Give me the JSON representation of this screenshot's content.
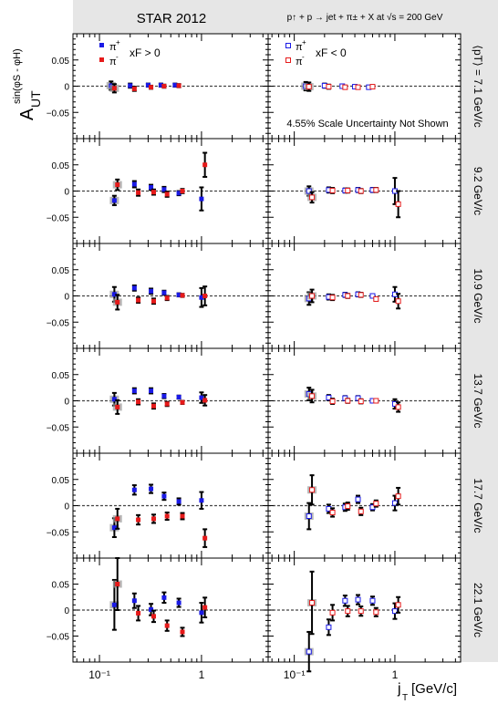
{
  "header": {
    "experiment": "STAR 2012",
    "reaction": "p↑ + p → jet + π± + X at √s = 200 GeV"
  },
  "ylabel_main": "A",
  "ylabel_sub": "UT",
  "ylabel_sup": "sin(φS - φH)",
  "xlabel_main": "j",
  "xlabel_sub": "T",
  "xlabel_unit": "[GeV/c]",
  "legend_left": {
    "pip": "π",
    "pim": "π",
    "sup_p": "+",
    "sup_m": "-",
    "cut": "xF > 0"
  },
  "legend_right": {
    "pip": "π",
    "pim": "π",
    "sup_p": "+",
    "sup_m": "-",
    "cut": "xF < 0"
  },
  "scale_note": "4.55% Scale Uncertainty Not Shown",
  "colors": {
    "pi_plus": "#1a1ae6",
    "pi_minus": "#e61a1a",
    "zero_line": "#444444",
    "header_bg": "#e6e6e6",
    "sys_box": "#9a9a9a"
  },
  "chart_data": {
    "type": "scatter",
    "x_scale": "log",
    "xlim": [
      0.055,
      4.5
    ],
    "ylim": [
      -0.1,
      0.1
    ],
    "x_ticks": [
      {
        "v": 0.1,
        "label": "10⁻¹"
      },
      {
        "v": 1,
        "label": "1"
      }
    ],
    "y_ticks": [
      -0.05,
      0,
      0.05
    ],
    "y_tick_labels": [
      "−0.05",
      "0",
      "0.05"
    ],
    "rows": [
      {
        "label": "⟨pT⟩ = 7.1 GeV/c",
        "panels": [
          {
            "xF": "pos",
            "series": [
              {
                "name": "π+",
                "x": [
                  0.13,
                  0.2,
                  0.3,
                  0.4,
                  0.55
                ],
                "y": [
                  0.001,
                  0.001,
                  0.002,
                  0.002,
                  0.002
                ],
                "err": [
                  0.008,
                  0.004,
                  0.003,
                  0.003,
                  0.003
                ]
              },
              {
                "name": "π-",
                "x": [
                  0.14,
                  0.22,
                  0.32,
                  0.43,
                  0.6
                ],
                "y": [
                  -0.004,
                  -0.005,
                  -0.002,
                  0.0,
                  0.001
                ],
                "err": [
                  0.008,
                  0.004,
                  0.003,
                  0.003,
                  0.003
                ]
              }
            ]
          },
          {
            "xF": "neg",
            "series": [
              {
                "name": "π+",
                "x": [
                  0.13,
                  0.2,
                  0.3,
                  0.4,
                  0.55
                ],
                "y": [
                  0.0,
                  0.001,
                  0.0,
                  -0.001,
                  -0.002
                ],
                "err": [
                  0.008,
                  0.004,
                  0.003,
                  0.003,
                  0.003
                ]
              },
              {
                "name": "π-",
                "x": [
                  0.14,
                  0.22,
                  0.32,
                  0.43,
                  0.6
                ],
                "y": [
                  -0.001,
                  -0.001,
                  -0.002,
                  -0.002,
                  -0.001
                ],
                "err": [
                  0.008,
                  0.004,
                  0.003,
                  0.003,
                  0.003
                ]
              }
            ]
          }
        ]
      },
      {
        "label": "9.2 GeV/c",
        "panels": [
          {
            "xF": "pos",
            "series": [
              {
                "name": "π+",
                "x": [
                  0.14,
                  0.22,
                  0.32,
                  0.43,
                  0.6,
                  1.0
                ],
                "y": [
                  -0.018,
                  0.013,
                  0.007,
                  0.003,
                  -0.004,
                  -0.015
                ],
                "err": [
                  0.009,
                  0.006,
                  0.005,
                  0.005,
                  0.004,
                  0.022
                ]
              },
              {
                "name": "π-",
                "x": [
                  0.15,
                  0.24,
                  0.34,
                  0.46,
                  0.65,
                  1.08
                ],
                "y": [
                  0.012,
                  -0.003,
                  -0.002,
                  -0.006,
                  0.0,
                  0.05
                ],
                "err": [
                  0.01,
                  0.006,
                  0.005,
                  0.005,
                  0.004,
                  0.023
                ]
              }
            ]
          },
          {
            "xF": "neg",
            "series": [
              {
                "name": "π+",
                "x": [
                  0.14,
                  0.22,
                  0.32,
                  0.43,
                  0.6,
                  1.0
                ],
                "y": [
                  0.0,
                  0.002,
                  0.001,
                  0.002,
                  0.002,
                  0.0
                ],
                "err": [
                  0.009,
                  0.005,
                  0.004,
                  0.004,
                  0.004,
                  0.025
                ]
              },
              {
                "name": "π-",
                "x": [
                  0.15,
                  0.24,
                  0.34,
                  0.46,
                  0.65,
                  1.08
                ],
                "y": [
                  -0.012,
                  0.001,
                  0.001,
                  0.0,
                  0.002,
                  -0.025
                ],
                "err": [
                  0.01,
                  0.005,
                  0.004,
                  0.004,
                  0.004,
                  0.025
                ]
              }
            ]
          }
        ]
      },
      {
        "label": "10.9 GeV/c",
        "panels": [
          {
            "xF": "pos",
            "series": [
              {
                "name": "π+",
                "x": [
                  0.14,
                  0.22,
                  0.32,
                  0.43,
                  0.6,
                  1.0
                ],
                "y": [
                  0.003,
                  0.015,
                  0.009,
                  0.006,
                  0.002,
                  -0.003
                ],
                "err": [
                  0.014,
                  0.005,
                  0.005,
                  0.004,
                  0.003,
                  0.018
                ]
              },
              {
                "name": "π-",
                "x": [
                  0.15,
                  0.24,
                  0.34,
                  0.46,
                  0.65,
                  1.08
                ],
                "y": [
                  -0.012,
                  -0.008,
                  -0.01,
                  -0.004,
                  0.001,
                  0.0
                ],
                "err": [
                  0.014,
                  0.005,
                  0.005,
                  0.004,
                  0.003,
                  0.018
                ]
              }
            ]
          },
          {
            "xF": "neg",
            "series": [
              {
                "name": "π+",
                "x": [
                  0.14,
                  0.22,
                  0.32,
                  0.43,
                  0.6,
                  1.0
                ],
                "y": [
                  -0.005,
                  -0.002,
                  0.002,
                  0.003,
                  0.0,
                  0.003
                ],
                "err": [
                  0.012,
                  0.005,
                  0.004,
                  0.004,
                  0.003,
                  0.014
                ]
              },
              {
                "name": "π-",
                "x": [
                  0.15,
                  0.24,
                  0.34,
                  0.46,
                  0.65,
                  1.08
                ],
                "y": [
                  0.0,
                  -0.003,
                  0.0,
                  0.002,
                  -0.006,
                  -0.01
                ],
                "err": [
                  0.012,
                  0.005,
                  0.004,
                  0.004,
                  0.003,
                  0.014
                ]
              }
            ]
          }
        ]
      },
      {
        "label": "13.7 GeV/c",
        "panels": [
          {
            "xF": "pos",
            "series": [
              {
                "name": "π+",
                "x": [
                  0.14,
                  0.22,
                  0.32,
                  0.43,
                  0.6,
                  1.0
                ],
                "y": [
                  0.003,
                  0.019,
                  0.019,
                  0.009,
                  0.007,
                  0.006
                ],
                "err": [
                  0.012,
                  0.005,
                  0.005,
                  0.004,
                  0.003,
                  0.01
                ]
              },
              {
                "name": "π-",
                "x": [
                  0.15,
                  0.24,
                  0.34,
                  0.46,
                  0.65,
                  1.08
                ],
                "y": [
                  -0.012,
                  -0.002,
                  -0.01,
                  -0.006,
                  -0.003,
                  0.001
                ],
                "err": [
                  0.013,
                  0.005,
                  0.005,
                  0.004,
                  0.003,
                  0.01
                ]
              }
            ]
          },
          {
            "xF": "neg",
            "series": [
              {
                "name": "π+",
                "x": [
                  0.14,
                  0.22,
                  0.32,
                  0.43,
                  0.6,
                  1.0
                ],
                "y": [
                  0.013,
                  0.006,
                  0.005,
                  0.005,
                  0.0,
                  -0.006
                ],
                "err": [
                  0.012,
                  0.005,
                  0.004,
                  0.004,
                  0.003,
                  0.009
                ]
              },
              {
                "name": "π-",
                "x": [
                  0.15,
                  0.24,
                  0.34,
                  0.46,
                  0.65,
                  1.08
                ],
                "y": [
                  0.009,
                  -0.001,
                  0.0,
                  -0.001,
                  0.0,
                  -0.012
                ],
                "err": [
                  0.012,
                  0.005,
                  0.004,
                  0.004,
                  0.003,
                  0.009
                ]
              }
            ]
          }
        ]
      },
      {
        "label": "17.7 GeV/c",
        "panels": [
          {
            "xF": "pos",
            "series": [
              {
                "name": "π+",
                "x": [
                  0.14,
                  0.22,
                  0.32,
                  0.43,
                  0.6,
                  1.0
                ],
                "y": [
                  -0.042,
                  0.03,
                  0.032,
                  0.018,
                  0.008,
                  0.01
                ],
                "err": [
                  0.018,
                  0.009,
                  0.008,
                  0.007,
                  0.006,
                  0.016
                ]
              },
              {
                "name": "π-",
                "x": [
                  0.15,
                  0.24,
                  0.34,
                  0.46,
                  0.65,
                  1.08
                ],
                "y": [
                  -0.025,
                  -0.027,
                  -0.025,
                  -0.02,
                  -0.02,
                  -0.062
                ],
                "err": [
                  0.019,
                  0.009,
                  0.008,
                  0.007,
                  0.006,
                  0.017
                ]
              }
            ]
          },
          {
            "xF": "neg",
            "series": [
              {
                "name": "π+",
                "x": [
                  0.14,
                  0.22,
                  0.32,
                  0.43,
                  0.6,
                  1.0
                ],
                "y": [
                  -0.02,
                  -0.006,
                  -0.003,
                  0.012,
                  -0.003,
                  0.005
                ],
                "err": [
                  0.025,
                  0.008,
                  0.007,
                  0.007,
                  0.006,
                  0.014
                ]
              },
              {
                "name": "π-",
                "x": [
                  0.15,
                  0.24,
                  0.34,
                  0.46,
                  0.65,
                  1.08
                ],
                "y": [
                  0.03,
                  -0.013,
                  -0.001,
                  -0.011,
                  0.004,
                  0.018
                ],
                "err": [
                  0.028,
                  0.008,
                  0.007,
                  0.007,
                  0.006,
                  0.016
                ]
              }
            ]
          }
        ]
      },
      {
        "label": "22.1 GeV/c",
        "panels": [
          {
            "xF": "pos",
            "series": [
              {
                "name": "π+",
                "x": [
                  0.14,
                  0.22,
                  0.32,
                  0.43,
                  0.6,
                  1.0
                ],
                "y": [
                  0.01,
                  0.018,
                  0.001,
                  0.024,
                  0.014,
                  -0.005
                ],
                "err": [
                  0.048,
                  0.014,
                  0.011,
                  0.01,
                  0.008,
                  0.019
                ]
              },
              {
                "name": "π-",
                "x": [
                  0.15,
                  0.24,
                  0.34,
                  0.46,
                  0.65,
                  1.08
                ],
                "y": [
                  0.05,
                  -0.006,
                  -0.012,
                  -0.03,
                  -0.042,
                  0.005
                ],
                "err": [
                  0.05,
                  0.014,
                  0.011,
                  0.01,
                  0.008,
                  0.019
                ]
              }
            ]
          },
          {
            "xF": "neg",
            "series": [
              {
                "name": "π+",
                "x": [
                  0.14,
                  0.22,
                  0.32,
                  0.43,
                  0.6,
                  1.0
                ],
                "y": [
                  -0.08,
                  -0.033,
                  0.018,
                  0.02,
                  0.018,
                  -0.002
                ],
                "err": [
                  0.038,
                  0.015,
                  0.01,
                  0.009,
                  0.008,
                  0.015
                ]
              },
              {
                "name": "π-",
                "x": [
                  0.15,
                  0.24,
                  0.34,
                  0.46,
                  0.65,
                  1.08
                ],
                "y": [
                  0.014,
                  -0.005,
                  -0.002,
                  -0.002,
                  -0.004,
                  0.01
                ],
                "err": [
                  0.06,
                  0.015,
                  0.01,
                  0.009,
                  0.008,
                  0.015
                ]
              }
            ]
          }
        ]
      }
    ]
  }
}
